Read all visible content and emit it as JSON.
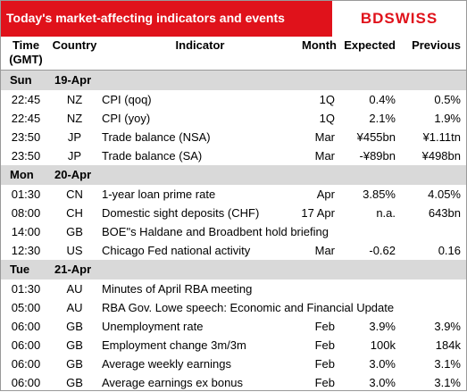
{
  "header": {
    "title": "Today's market-affecting indicators and events",
    "logo": "BDSWISS"
  },
  "table": {
    "columns": [
      "Time (GMT)",
      "Country",
      "Indicator",
      "Month",
      "Expected",
      "Previous"
    ],
    "sections": [
      {
        "day": "Sun",
        "date": "19-Apr",
        "rows": [
          [
            "22:45",
            "NZ",
            "CPI (qoq)",
            "1Q",
            "0.4%",
            "0.5%"
          ],
          [
            "22:45",
            "NZ",
            "CPI (yoy)",
            "1Q",
            "2.1%",
            "1.9%"
          ],
          [
            "23:50",
            "JP",
            "Trade balance (NSA)",
            "Mar",
            "¥455bn",
            "¥1.11tn"
          ],
          [
            "23:50",
            "JP",
            "Trade balance (SA)",
            "Mar",
            "-¥89bn",
            "¥498bn"
          ]
        ]
      },
      {
        "day": "Mon",
        "date": "20-Apr",
        "rows": [
          [
            "01:30",
            "CN",
            "1-year loan prime rate",
            "Apr",
            "3.85%",
            "4.05%"
          ],
          [
            "08:00",
            "CH",
            "Domestic sight deposits (CHF)",
            "17 Apr",
            "n.a.",
            "643bn"
          ],
          [
            "14:00",
            "GB",
            "BOE\"s Haldane and Broadbent hold briefing",
            null,
            null,
            null
          ],
          [
            "12:30",
            "US",
            "Chicago Fed national activity",
            "Mar",
            "-0.62",
            "0.16"
          ]
        ]
      },
      {
        "day": "Tue",
        "date": "21-Apr",
        "rows": [
          [
            "01:30",
            "AU",
            "Minutes of April RBA meeting",
            null,
            null,
            null
          ],
          [
            "05:00",
            "AU",
            "RBA Gov. Lowe speech: Economic and Financial Update",
            null,
            null,
            null
          ],
          [
            "06:00",
            "GB",
            "Unemployment rate",
            "Feb",
            "3.9%",
            "3.9%"
          ],
          [
            "06:00",
            "GB",
            "Employment change 3m/3m",
            "Feb",
            "100k",
            "184k"
          ],
          [
            "06:00",
            "GB",
            "Average weekly earnings",
            "Feb",
            "3.0%",
            "3.1%"
          ],
          [
            "06:00",
            "GB",
            "Average earnings ex bonus",
            "Feb",
            "3.0%",
            "3.1%"
          ]
        ]
      }
    ]
  }
}
